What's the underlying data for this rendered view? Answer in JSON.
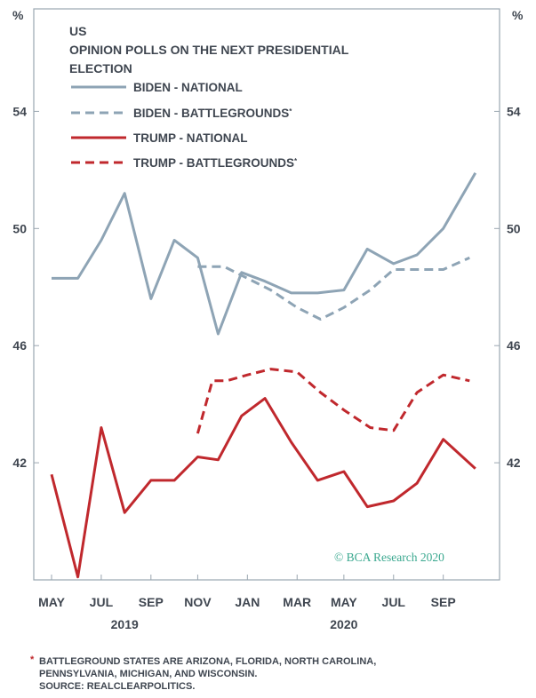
{
  "chart_data": {
    "type": "line",
    "title_lines": [
      "US",
      "OPINION POLLS ON THE NEXT PRESIDENTIAL",
      "ELECTION"
    ],
    "unit_label": "%",
    "ylim": [
      38,
      57.5
    ],
    "yticks": [
      42,
      46,
      50,
      54
    ],
    "xlim": [
      2019.33,
      2020.82
    ],
    "x_tick_labels": [
      {
        "label": "MAY",
        "x": 2019.33
      },
      {
        "label": "JUL",
        "x": 2019.5
      },
      {
        "label": "SEP",
        "x": 2019.67
      },
      {
        "label": "NOV",
        "x": 2019.83
      },
      {
        "label": "JAN",
        "x": 2020.0
      },
      {
        "label": "MAR",
        "x": 2020.17
      },
      {
        "label": "MAY",
        "x": 2020.33
      },
      {
        "label": "JUL",
        "x": 2020.5
      },
      {
        "label": "SEP",
        "x": 2020.67
      }
    ],
    "year_labels": [
      {
        "label": "2019",
        "x": 2019.58
      },
      {
        "label": "2020",
        "x": 2020.33
      }
    ],
    "grid": false,
    "legend_position": "top-left",
    "series": [
      {
        "name": "BIDEN - NATIONAL",
        "color": "#8ea4b5",
        "dash": "solid",
        "x": [
          2019.33,
          2019.42,
          2019.5,
          2019.58,
          2019.67,
          2019.75,
          2019.83,
          2019.9,
          2019.98,
          2020.06,
          2020.15,
          2020.24,
          2020.33,
          2020.41,
          2020.5,
          2020.58,
          2020.67,
          2020.78
        ],
        "y": [
          48.3,
          48.3,
          49.6,
          51.2,
          47.6,
          49.6,
          49.0,
          46.4,
          48.5,
          48.2,
          47.8,
          47.8,
          47.9,
          49.3,
          48.8,
          49.1,
          50.0,
          51.9
        ]
      },
      {
        "name": "BIDEN - BATTLEGROUNDS",
        "color": "#8ea4b5",
        "dash": "dashed",
        "x": [
          2019.83,
          2019.92,
          2020.0,
          2020.08,
          2020.17,
          2020.25,
          2020.33,
          2020.42,
          2020.5,
          2020.58,
          2020.67,
          2020.76
        ],
        "y": [
          48.7,
          48.7,
          48.3,
          47.9,
          47.3,
          46.9,
          47.3,
          47.9,
          48.6,
          48.6,
          48.6,
          49.0
        ]
      },
      {
        "name": "TRUMP - NATIONAL",
        "color": "#c0282d",
        "dash": "solid",
        "x": [
          2019.33,
          2019.42,
          2019.5,
          2019.58,
          2019.67,
          2019.75,
          2019.83,
          2019.9,
          2019.98,
          2020.06,
          2020.15,
          2020.24,
          2020.33,
          2020.41,
          2020.5,
          2020.58,
          2020.67,
          2020.78
        ],
        "y": [
          41.6,
          38.1,
          43.2,
          40.3,
          41.4,
          41.4,
          42.2,
          42.1,
          43.6,
          44.2,
          42.7,
          41.4,
          41.7,
          40.5,
          40.7,
          41.3,
          42.8,
          41.8
        ]
      },
      {
        "name": "TRUMP - BATTLEGROUNDS",
        "color": "#c0282d",
        "dash": "dashed",
        "x": [
          2019.83,
          2019.88,
          2019.93,
          2020.0,
          2020.08,
          2020.17,
          2020.25,
          2020.33,
          2020.42,
          2020.5,
          2020.58,
          2020.67,
          2020.76
        ],
        "y": [
          43.0,
          44.8,
          44.8,
          45.0,
          45.2,
          45.1,
          44.4,
          43.8,
          43.2,
          43.1,
          44.4,
          45.0,
          44.8
        ]
      }
    ],
    "legend_entries": [
      {
        "label": "BIDEN - NATIONAL",
        "mark": ""
      },
      {
        "label": "BIDEN - BATTLEGROUNDS",
        "mark": "*"
      },
      {
        "label": "TRUMP - NATIONAL",
        "mark": ""
      },
      {
        "label": "TRUMP - BATTLEGROUNDS",
        "mark": "*"
      }
    ],
    "watermark": "© BCA Research 2020"
  },
  "footnote": {
    "star": "*",
    "lines": [
      "BATTLEGROUND STATES ARE ARIZONA, FLORIDA, NORTH CAROLINA,",
      "PENNSYLVANIA, MICHIGAN, AND WISCONSIN.",
      "SOURCE: REALCLEARPOLITICS."
    ]
  }
}
